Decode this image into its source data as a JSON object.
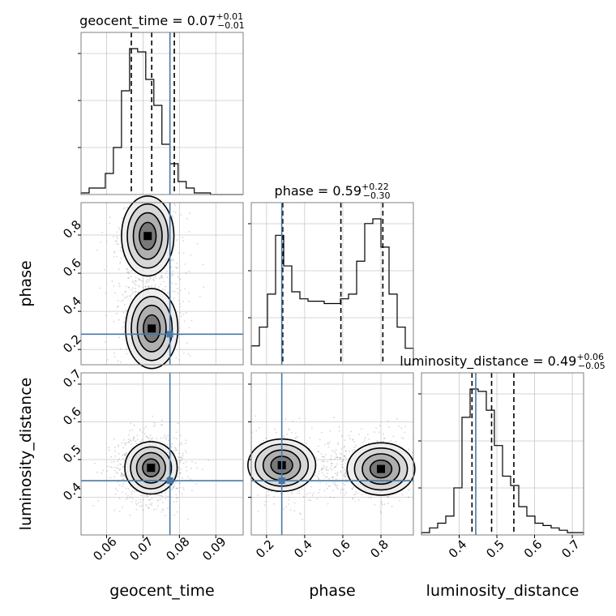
{
  "chart_data": {
    "type": "corner",
    "parameters": [
      {
        "name": "geocent_time",
        "axis_label": "geocent_time",
        "title_prefix": "geocent_time = 0.07",
        "title_plus": "+0.01",
        "title_minus": "−0.01",
        "range": [
          0.053,
          0.0975
        ],
        "ticks": [
          "0.06",
          "0.07",
          "0.08",
          "0.09"
        ],
        "tick_values": [
          0.06,
          0.07,
          0.08,
          0.09
        ],
        "quantiles": [
          0.0668,
          0.0724,
          0.0786
        ],
        "truth": 0.0774,
        "hist_edges_start": 0.053,
        "hist_bin_width": 0.00222,
        "hist_counts": [
          1,
          4,
          4,
          13,
          29,
          64,
          90,
          88,
          71,
          55,
          31,
          19,
          8,
          4,
          1,
          1,
          0,
          0,
          0,
          0
        ]
      },
      {
        "name": "phase",
        "axis_label": "phase",
        "title_prefix": "phase = 0.59",
        "title_plus": "+0.22",
        "title_minus": "−0.30",
        "range": [
          0.12,
          0.97
        ],
        "ticks": [
          "0.2",
          "0.4",
          "0.6",
          "0.8"
        ],
        "tick_values": [
          0.2,
          0.4,
          0.6,
          0.8
        ],
        "y_ticks": [
          "0.2",
          "0.4",
          "0.6",
          "0.8"
        ],
        "quantiles": [
          0.285,
          0.59,
          0.81
        ],
        "truth": 0.28,
        "hist_edges_start": 0.12,
        "hist_bin_width": 0.0425,
        "hist_counts": [
          8,
          16,
          30,
          55,
          42,
          31,
          28,
          27,
          27,
          26,
          26,
          28,
          30,
          44,
          60,
          62,
          50,
          30,
          16,
          7
        ]
      },
      {
        "name": "luminosity_distance",
        "axis_label": "luminosity_distance",
        "title_prefix": "luminosity_distance = 0.49",
        "title_plus": "+0.06",
        "title_minus": "−0.05",
        "range": [
          0.3,
          0.73
        ],
        "ticks": [
          "0.4",
          "0.5",
          "0.6",
          "0.7"
        ],
        "tick_values": [
          0.4,
          0.5,
          0.6,
          0.7
        ],
        "y_ticks": [
          "0.4",
          "0.5",
          "0.6",
          "0.7"
        ],
        "quantiles": [
          0.434,
          0.486,
          0.545
        ],
        "truth": 0.444,
        "hist_edges_start": 0.3,
        "hist_bin_width": 0.0215,
        "hist_counts": [
          1,
          3,
          5,
          8,
          20,
          50,
          62,
          61,
          53,
          38,
          25,
          21,
          12,
          8,
          5,
          4,
          3,
          2,
          1,
          1
        ]
      }
    ],
    "contours": [
      {
        "x": "geocent_time",
        "y": "phase",
        "modes": [
          {
            "x": 0.0713,
            "y": 0.795
          },
          {
            "x": 0.0724,
            "y": 0.31
          }
        ]
      },
      {
        "x": "geocent_time",
        "y": "luminosity_distance",
        "modes": [
          {
            "x": 0.0722,
            "y": 0.478
          }
        ]
      },
      {
        "x": "phase",
        "y": "luminosity_distance",
        "modes": [
          {
            "x": 0.28,
            "y": 0.485
          },
          {
            "x": 0.8,
            "y": 0.475
          }
        ]
      }
    ],
    "colors": {
      "truth": "#4878a8",
      "hist": "#000000",
      "quantile": "#000000",
      "grid": "#c8c8c8",
      "frame": "#7f7f7f",
      "points": "#8a8a8a"
    },
    "grid": true
  }
}
